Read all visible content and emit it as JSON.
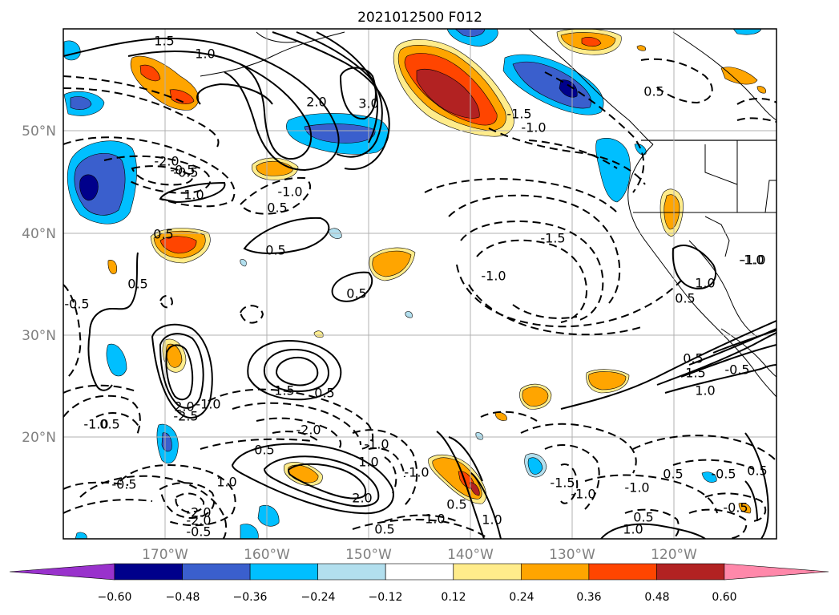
{
  "title": "2021012500 F012",
  "lat_labels": [
    "50°N",
    "40°N",
    "30°N",
    "20°N"
  ],
  "lon_labels": [
    "170°W",
    "160°W",
    "150°W",
    "140°W",
    "130°W",
    "120°W"
  ],
  "colorbar": {
    "ticks": [
      "−0.60",
      "−0.48",
      "−0.36",
      "−0.24",
      "−0.12",
      "0.12",
      "0.24",
      "0.36",
      "0.48",
      "0.60"
    ],
    "colors": [
      "#9932cc",
      "#00008b",
      "#3a5fcd",
      "#00bfff",
      "#b2dfee",
      "#ffffff",
      "#ffec8b",
      "#ffa500",
      "#ff4500",
      "#b22222",
      "#ff88aa"
    ]
  },
  "contour_labels": [
    "1.5",
    "1.0",
    "2.0",
    "3.0",
    "-1.5",
    "-1.0",
    "0.5",
    "-2.0",
    "-0.5",
    "1.0",
    "-1.0",
    "0.5",
    "-0.5",
    "0.5",
    "-1.5",
    "-1.0",
    "0.5",
    "-0.5",
    "0.5",
    "1.0",
    "0.5",
    "0.5",
    "1.5",
    "1.0",
    "0.5",
    "-1.0",
    "-0.5",
    "-1.0",
    "2.0",
    "-2.5",
    "-1.0",
    "0.5",
    "1.5",
    "0.5",
    "-2.0",
    "-1.0",
    "-2.0",
    "0.5",
    "1.0",
    "2.0",
    "1.0",
    "-0.5",
    "-1.0",
    "0.5",
    "-1.0",
    "1.0",
    "-1.5",
    "-1.0",
    "-1.0",
    "0.5",
    "-0.5",
    "0.5",
    "1.0",
    "-0.5",
    "-2.0",
    "-0.5",
    "0.5",
    "-1.0",
    "0.5"
  ]
}
